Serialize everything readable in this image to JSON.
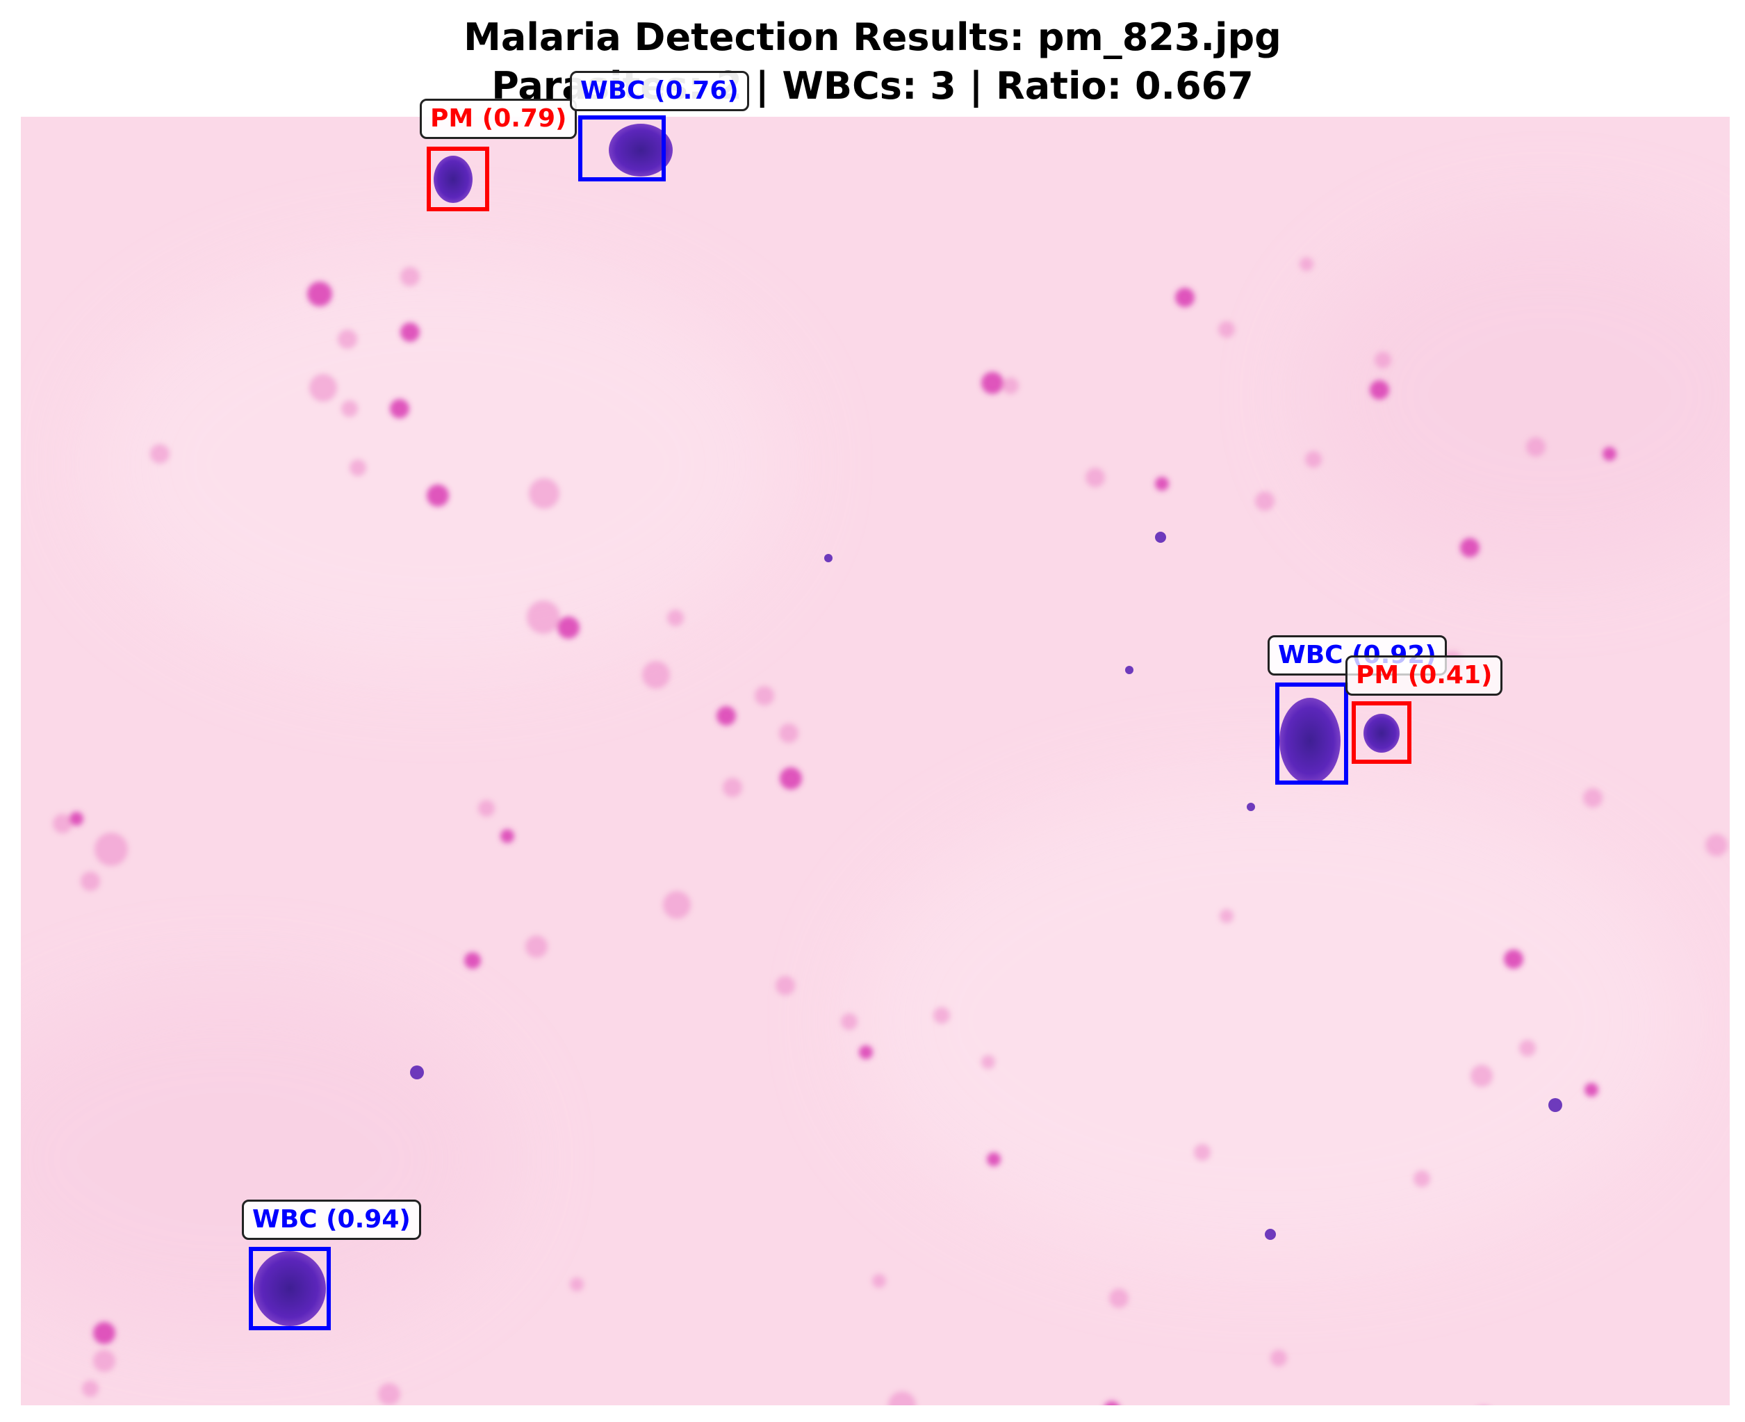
{
  "title": {
    "line1": "Malaria Detection Results: pm_823.jpg",
    "line2": "Parasites: 2 | WBCs: 3 | Ratio: 0.667"
  },
  "colors": {
    "background": "#fbd9e8",
    "stain_light": "#ee8fcd",
    "stain_dark": "#d93cb4",
    "nucleus": "#4a10b0",
    "wbc": "#0000ff",
    "pm": "#ff0000"
  },
  "detections": [
    {
      "id": "pm-1",
      "class": "PM",
      "confidence": "0.79",
      "label": "PM (0.79)"
    },
    {
      "id": "wbc-1",
      "class": "WBC",
      "confidence": "0.76",
      "label": "WBC (0.76)"
    },
    {
      "id": "wbc-2",
      "class": "WBC",
      "confidence": "0.92",
      "label": "WBC (0.92)"
    },
    {
      "id": "pm-2",
      "class": "PM",
      "confidence": "0.41",
      "label": "PM (0.41)"
    },
    {
      "id": "wbc-3",
      "class": "WBC",
      "confidence": "0.94",
      "label": "WBC (0.94)"
    }
  ]
}
